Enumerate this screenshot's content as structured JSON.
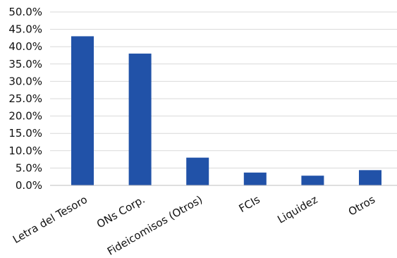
{
  "chart_data": {
    "type": "bar",
    "title": "",
    "xlabel": "",
    "ylabel": "",
    "categories": [
      "Letra del Tesoro",
      "ONs Corp.",
      "Fideicomisos (Otros)",
      "FCIs",
      "Liquidez",
      "Otros"
    ],
    "values": [
      43.0,
      38.0,
      8.0,
      3.7,
      2.8,
      4.4
    ],
    "ylim": [
      0,
      50
    ],
    "yticks": [
      "0.0%",
      "5.0%",
      "10.0%",
      "15.0%",
      "20.0%",
      "25.0%",
      "30.0%",
      "35.0%",
      "40.0%",
      "45.0%",
      "50.0%"
    ],
    "grid": true,
    "legend": "none",
    "bar_color": "#2152a8"
  }
}
